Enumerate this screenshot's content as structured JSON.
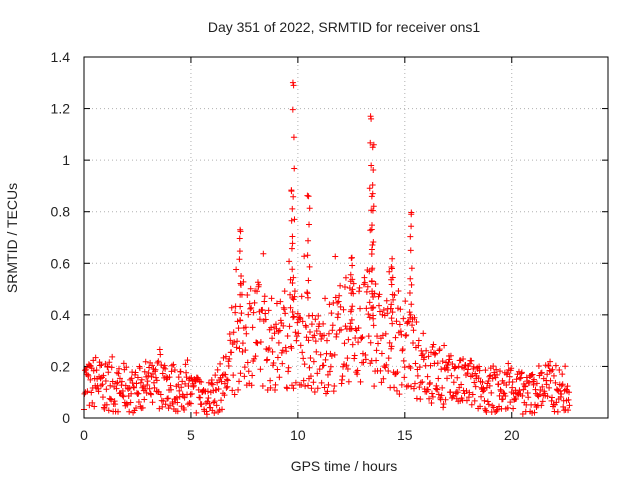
{
  "chart_data": {
    "type": "scatter",
    "title": "Day 351 of 2022, SRMTID for receiver ons1",
    "xlabel": "GPS time / hours",
    "ylabel": "SRMTID / TECUs",
    "xlim": [
      0,
      24.5
    ],
    "ylim": [
      0,
      1.4
    ],
    "x_ticks": [
      0,
      5,
      10,
      15,
      20
    ],
    "x_tick_labels": [
      "0",
      "5",
      "10",
      "15",
      "20"
    ],
    "y_ticks": [
      0,
      0.2,
      0.4,
      0.6,
      0.8,
      1.0,
      1.2,
      1.4
    ],
    "y_tick_labels": [
      "0",
      "0.2",
      "0.4",
      "0.6",
      "0.8",
      "1",
      "1.2",
      "1.4"
    ],
    "grid": true,
    "legend": "none",
    "marker": "plus",
    "color": "#ff0000",
    "series": [
      {
        "name": "ons1",
        "x": [
          0.0,
          0.3,
          0.6,
          0.9,
          1.2,
          1.5,
          1.8,
          2.1,
          2.4,
          2.7,
          3.0,
          3.3,
          3.6,
          3.9,
          4.2,
          4.5,
          4.8,
          5.1,
          5.4,
          5.7,
          6.0,
          6.3,
          6.6,
          6.9,
          7.2,
          7.5,
          7.8,
          8.1,
          8.4,
          8.7,
          9.0,
          9.3,
          9.6,
          9.9,
          10.2,
          10.5,
          10.8,
          11.1,
          11.4,
          11.7,
          12.0,
          12.3,
          12.6,
          12.9,
          13.2,
          13.5,
          13.8,
          14.1,
          14.4,
          14.7,
          15.0,
          15.3,
          15.6,
          15.9,
          16.2,
          16.5,
          16.8,
          17.1,
          17.4,
          17.7,
          18.0,
          18.3,
          18.6,
          18.9,
          19.2,
          19.5,
          19.8,
          20.1,
          20.4,
          20.7,
          21.0,
          21.3,
          21.6,
          21.9,
          22.2,
          22.5,
          22.7
        ],
        "y": [
          0.14,
          0.12,
          0.15,
          0.11,
          0.13,
          0.1,
          0.12,
          0.11,
          0.1,
          0.12,
          0.13,
          0.11,
          0.16,
          0.13,
          0.12,
          0.1,
          0.11,
          0.09,
          0.1,
          0.08,
          0.09,
          0.11,
          0.15,
          0.22,
          0.3,
          0.33,
          0.35,
          0.33,
          0.31,
          0.29,
          0.28,
          0.3,
          0.33,
          0.31,
          0.32,
          0.3,
          0.26,
          0.24,
          0.27,
          0.3,
          0.33,
          0.34,
          0.35,
          0.33,
          0.36,
          0.34,
          0.3,
          0.28,
          0.3,
          0.27,
          0.28,
          0.25,
          0.22,
          0.2,
          0.18,
          0.16,
          0.15,
          0.14,
          0.13,
          0.13,
          0.14,
          0.12,
          0.11,
          0.12,
          0.11,
          0.1,
          0.11,
          0.12,
          0.1,
          0.09,
          0.1,
          0.12,
          0.13,
          0.12,
          0.11,
          0.1,
          0.09
        ],
        "peaks": [
          {
            "x": 9.8,
            "y": 1.29
          },
          {
            "x": 9.7,
            "y": 0.88
          },
          {
            "x": 10.5,
            "y": 0.86
          },
          {
            "x": 13.4,
            "y": 1.17
          },
          {
            "x": 13.5,
            "y": 1.05
          },
          {
            "x": 13.5,
            "y": 0.87
          },
          {
            "x": 15.3,
            "y": 0.79
          },
          {
            "x": 7.3,
            "y": 0.73
          },
          {
            "x": 14.4,
            "y": 0.58
          },
          {
            "x": 12.5,
            "y": 0.62
          }
        ]
      }
    ]
  }
}
